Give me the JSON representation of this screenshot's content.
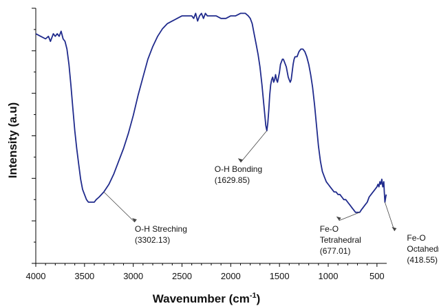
{
  "chart_data": {
    "type": "line",
    "xlabel": "Wavenumber (cm",
    "xlabel_superscript": "-1",
    "xlabel_suffix": ")",
    "ylabel": "Intensity (a.u)",
    "xlim": [
      4000,
      400
    ],
    "x_reversed": true,
    "x_ticks": [
      4000,
      3500,
      3000,
      2500,
      2000,
      1500,
      1000,
      500
    ],
    "y_ticks_labeled": false,
    "grid": false,
    "line_color": "#1f2a8c",
    "series": [
      {
        "points": [
          [
            4000,
            90
          ],
          [
            3950,
            89
          ],
          [
            3900,
            88
          ],
          [
            3870,
            89
          ],
          [
            3850,
            87
          ],
          [
            3820,
            90
          ],
          [
            3800,
            89
          ],
          [
            3780,
            90
          ],
          [
            3760,
            89
          ],
          [
            3740,
            91
          ],
          [
            3720,
            88
          ],
          [
            3700,
            87
          ],
          [
            3680,
            84
          ],
          [
            3660,
            78
          ],
          [
            3640,
            70
          ],
          [
            3620,
            61
          ],
          [
            3600,
            52
          ],
          [
            3580,
            45
          ],
          [
            3560,
            39
          ],
          [
            3540,
            33
          ],
          [
            3520,
            29
          ],
          [
            3500,
            27
          ],
          [
            3480,
            25
          ],
          [
            3460,
            24
          ],
          [
            3440,
            24
          ],
          [
            3420,
            24
          ],
          [
            3400,
            24
          ],
          [
            3380,
            25
          ],
          [
            3350,
            26
          ],
          [
            3302,
            28
          ],
          [
            3250,
            31
          ],
          [
            3200,
            35
          ],
          [
            3150,
            40
          ],
          [
            3100,
            45
          ],
          [
            3050,
            51
          ],
          [
            3000,
            58
          ],
          [
            2950,
            66
          ],
          [
            2900,
            73
          ],
          [
            2850,
            80
          ],
          [
            2800,
            85
          ],
          [
            2750,
            89
          ],
          [
            2700,
            92
          ],
          [
            2650,
            94
          ],
          [
            2600,
            95
          ],
          [
            2550,
            96
          ],
          [
            2500,
            97
          ],
          [
            2450,
            97
          ],
          [
            2400,
            97
          ],
          [
            2380,
            96
          ],
          [
            2360,
            98
          ],
          [
            2340,
            95
          ],
          [
            2320,
            97
          ],
          [
            2300,
            98
          ],
          [
            2280,
            96
          ],
          [
            2260,
            98
          ],
          [
            2240,
            97
          ],
          [
            2200,
            97
          ],
          [
            2150,
            97
          ],
          [
            2100,
            96
          ],
          [
            2050,
            96
          ],
          [
            2000,
            97
          ],
          [
            1950,
            97
          ],
          [
            1900,
            98
          ],
          [
            1850,
            98
          ],
          [
            1820,
            97
          ],
          [
            1800,
            96
          ],
          [
            1780,
            94
          ],
          [
            1760,
            90
          ],
          [
            1740,
            86
          ],
          [
            1720,
            82
          ],
          [
            1700,
            77
          ],
          [
            1680,
            70
          ],
          [
            1660,
            62
          ],
          [
            1650,
            58
          ],
          [
            1640,
            54
          ],
          [
            1629.85,
            52
          ],
          [
            1620,
            55
          ],
          [
            1610,
            60
          ],
          [
            1600,
            66
          ],
          [
            1590,
            70
          ],
          [
            1580,
            72
          ],
          [
            1570,
            73
          ],
          [
            1560,
            71
          ],
          [
            1550,
            72
          ],
          [
            1540,
            74
          ],
          [
            1530,
            72
          ],
          [
            1520,
            71
          ],
          [
            1510,
            73
          ],
          [
            1500,
            75
          ],
          [
            1490,
            78
          ],
          [
            1480,
            79
          ],
          [
            1470,
            80
          ],
          [
            1460,
            80
          ],
          [
            1450,
            79
          ],
          [
            1440,
            78
          ],
          [
            1430,
            77
          ],
          [
            1420,
            75
          ],
          [
            1410,
            73
          ],
          [
            1400,
            72
          ],
          [
            1390,
            71
          ],
          [
            1380,
            72
          ],
          [
            1370,
            75
          ],
          [
            1360,
            78
          ],
          [
            1350,
            80
          ],
          [
            1340,
            81
          ],
          [
            1320,
            81
          ],
          [
            1300,
            83
          ],
          [
            1280,
            84
          ],
          [
            1260,
            84
          ],
          [
            1240,
            83
          ],
          [
            1220,
            81
          ],
          [
            1200,
            78
          ],
          [
            1180,
            74
          ],
          [
            1160,
            69
          ],
          [
            1140,
            62
          ],
          [
            1120,
            54
          ],
          [
            1100,
            46
          ],
          [
            1080,
            40
          ],
          [
            1060,
            36
          ],
          [
            1040,
            34
          ],
          [
            1020,
            32
          ],
          [
            1000,
            31
          ],
          [
            980,
            30
          ],
          [
            960,
            29
          ],
          [
            940,
            28
          ],
          [
            920,
            28
          ],
          [
            900,
            27
          ],
          [
            880,
            27
          ],
          [
            860,
            26
          ],
          [
            840,
            25
          ],
          [
            820,
            25
          ],
          [
            800,
            24
          ],
          [
            780,
            23
          ],
          [
            760,
            22
          ],
          [
            740,
            21
          ],
          [
            720,
            20
          ],
          [
            700,
            20
          ],
          [
            677.01,
            20
          ],
          [
            660,
            21
          ],
          [
            640,
            22
          ],
          [
            620,
            23
          ],
          [
            600,
            24
          ],
          [
            580,
            26
          ],
          [
            560,
            27
          ],
          [
            540,
            28
          ],
          [
            520,
            29
          ],
          [
            500,
            30
          ],
          [
            490,
            31
          ],
          [
            480,
            30
          ],
          [
            470,
            32
          ],
          [
            460,
            31
          ],
          [
            450,
            33
          ],
          [
            440,
            30
          ],
          [
            430,
            32
          ],
          [
            425,
            28
          ],
          [
            418.55,
            24
          ],
          [
            410,
            26
          ],
          [
            405,
            27
          ]
        ]
      }
    ],
    "annotations": [
      {
        "label": "O-H Streching",
        "value": "(3302.13)",
        "x": 3302.13,
        "y": 28
      },
      {
        "label": "O-H Bonding",
        "value": "(1629.85)",
        "x": 1629.85,
        "y": 52
      },
      {
        "label": "Fe-O",
        "label2": "Tetrahedral",
        "value": "(677.01)",
        "x": 677.01,
        "y": 20
      },
      {
        "label": "Fe-O",
        "label2": "Octahedral",
        "value": "(418.55)",
        "x": 418.55,
        "y": 24
      }
    ]
  }
}
